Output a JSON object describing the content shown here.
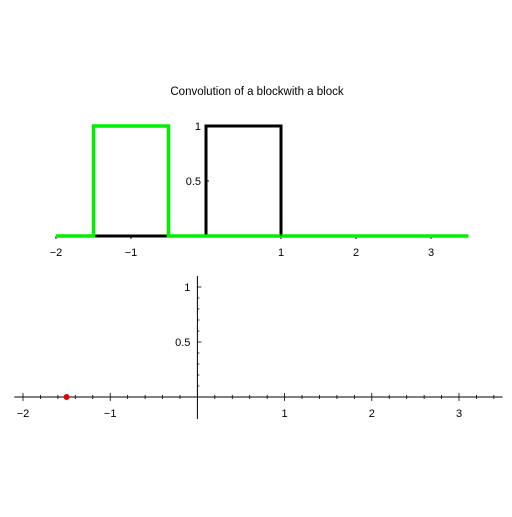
{
  "chart_data": [
    {
      "type": "line",
      "title": "Convolution  of a blockwith a block",
      "xlim": [
        -2,
        3.5
      ],
      "ylim": [
        0,
        1
      ],
      "x_ticks": [
        {
          "value": -2,
          "label": "−2"
        },
        {
          "value": -1,
          "label": "−1"
        },
        {
          "value": 1,
          "label": "1"
        },
        {
          "value": 2,
          "label": "2"
        },
        {
          "value": 3,
          "label": "3"
        }
      ],
      "y_ticks": [
        {
          "value": 0.5,
          "label": "0.5"
        },
        {
          "value": 1,
          "label": "1"
        }
      ],
      "series": [
        {
          "role": "fixed-block",
          "color": "#000000",
          "x": [
            -2,
            0,
            0,
            1,
            1,
            3.5
          ],
          "y": [
            0,
            0,
            1,
            1,
            0,
            0
          ]
        },
        {
          "role": "sliding-block",
          "color": "#00ee00",
          "x": [
            -2,
            -1.5,
            -1.5,
            -0.5,
            -0.5,
            3.5
          ],
          "y": [
            0,
            0,
            1,
            1,
            0,
            0
          ]
        }
      ]
    },
    {
      "type": "scatter",
      "xlim": [
        -2.1,
        3.5
      ],
      "ylim": [
        0,
        1.1
      ],
      "x_ticks": [
        {
          "value": -2,
          "label": "−2"
        },
        {
          "value": -1,
          "label": "−1"
        },
        {
          "value": 1,
          "label": "1"
        },
        {
          "value": 2,
          "label": "2"
        },
        {
          "value": 3,
          "label": "3"
        }
      ],
      "y_ticks": [
        {
          "value": 0.5,
          "label": "0.5"
        },
        {
          "value": 1,
          "label": "1"
        }
      ],
      "points": [
        {
          "x": -1.5,
          "y": 0,
          "color": "#e00000"
        }
      ]
    }
  ]
}
